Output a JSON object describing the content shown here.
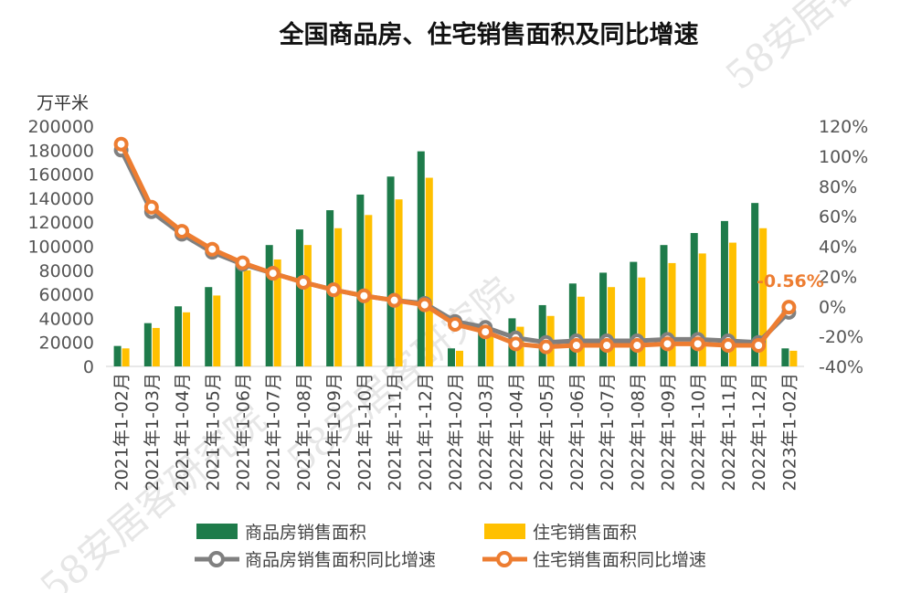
{
  "chart_data": {
    "type": "bar",
    "title": "全国商品房、住宅销售面积及同比增速",
    "ylabel": "万平米",
    "ylim": [
      0,
      200000
    ],
    "y2lim": [
      -0.4,
      1.2
    ],
    "yticks": [
      "200000",
      "180000",
      "160000",
      "140000",
      "120000",
      "100000",
      "80000",
      "60000",
      "40000",
      "20000",
      "0"
    ],
    "y2ticks": [
      "120%",
      "100%",
      "80%",
      "60%",
      "40%",
      "20%",
      "0%",
      "-20%",
      "-40%"
    ],
    "categories": [
      "2021年1-02月",
      "2021年1-03月",
      "2021年1-04月",
      "2021年1-05月",
      "2021年1-06月",
      "2021年1-07月",
      "2021年1-08月",
      "2021年1-09月",
      "2021年1-10月",
      "2021年1-11月",
      "2021年1-12月",
      "2022年1-02月",
      "2022年1-03月",
      "2022年1-04月",
      "2022年1-05月",
      "2022年1-06月",
      "2022年1-07月",
      "2022年1-08月",
      "2022年1-09月",
      "2022年1-10月",
      "2022年1-11月",
      "2022年1-12月",
      "2023年1-02月"
    ],
    "series": [
      {
        "name": "商品房销售面积",
        "type": "bar",
        "axis": "left",
        "color": "#1e7b4a",
        "values": [
          17000,
          36000,
          50000,
          66000,
          89000,
          101000,
          114000,
          130000,
          143000,
          158000,
          179000,
          15000,
          31000,
          40000,
          51000,
          69000,
          78000,
          87000,
          101000,
          111000,
          121000,
          136000,
          15000
        ]
      },
      {
        "name": "住宅销售面积",
        "type": "bar",
        "axis": "left",
        "color": "#ffc000",
        "values": [
          15000,
          32000,
          45000,
          59000,
          80000,
          89000,
          101000,
          115000,
          126000,
          139000,
          157000,
          13000,
          26000,
          33000,
          42000,
          58000,
          66000,
          74000,
          86000,
          94000,
          103000,
          115000,
          13000
        ]
      },
      {
        "name": "商品房销售面积同比增速",
        "type": "line",
        "axis": "right",
        "color": "#808080",
        "values": [
          1.04,
          0.63,
          0.48,
          0.36,
          0.28,
          0.22,
          0.16,
          0.11,
          0.07,
          0.04,
          0.02,
          -0.1,
          -0.14,
          -0.21,
          -0.24,
          -0.23,
          -0.23,
          -0.23,
          -0.22,
          -0.22,
          -0.23,
          -0.24,
          -0.04
        ]
      },
      {
        "name": "住宅销售面积同比增速",
        "type": "line",
        "axis": "right",
        "color": "#ed7d31",
        "values": [
          1.08,
          0.66,
          0.5,
          0.38,
          0.29,
          0.22,
          0.16,
          0.11,
          0.07,
          0.04,
          0.01,
          -0.12,
          -0.17,
          -0.25,
          -0.27,
          -0.26,
          -0.26,
          -0.26,
          -0.25,
          -0.25,
          -0.26,
          -0.26,
          -0.0056
        ]
      }
    ],
    "annotation": {
      "text": "-0.56%",
      "color": "#ed7d31"
    },
    "legend_position": "bottom",
    "grid": false
  },
  "watermarks": [
    "58安居客",
    "58安居客研究院",
    "58安居客研究院"
  ]
}
